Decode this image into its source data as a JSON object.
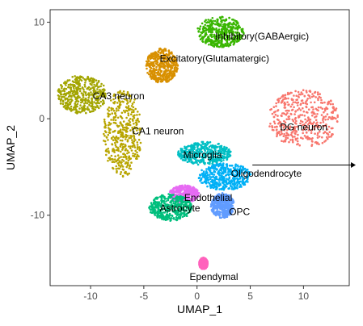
{
  "chart_data": {
    "type": "scatter",
    "xlabel": "UMAP_1",
    "ylabel": "UMAP_2",
    "xlim": [
      -13.8,
      14.3
    ],
    "ylim": [
      -17.3,
      11.3
    ],
    "xticks": [
      -10,
      -5,
      0,
      5,
      10
    ],
    "yticks": [
      10,
      0,
      -10
    ],
    "grid": false,
    "legend": "none",
    "clusters": [
      {
        "label": "Inhibitory(GABAergic)",
        "color": "#39B600",
        "center": [
          2.2,
          9.0
        ],
        "spread": [
          2.2,
          1.6
        ],
        "label_pos": [
          1.7,
          8.2
        ]
      },
      {
        "label": "Excitatory(Glutamatergic)",
        "color": "#D89000",
        "center": [
          -3.3,
          5.5
        ],
        "spread": [
          1.5,
          1.8
        ],
        "label_pos": [
          -3.5,
          5.9
        ]
      },
      {
        "label": "CA3 neuron",
        "color": "#A3A500",
        "center": [
          -10.8,
          2.5
        ],
        "spread": [
          2.3,
          2.0
        ],
        "label_pos": [
          -9.8,
          2.0
        ]
      },
      {
        "label": "CA1 neuron",
        "color": "#B8A500",
        "center": [
          -7.0,
          -1.5
        ],
        "spread": [
          1.8,
          4.5
        ],
        "label_pos": [
          -6.1,
          -1.6
        ]
      },
      {
        "label": "DG neuron",
        "color": "#F8766D",
        "center": [
          10.0,
          0.0
        ],
        "spread": [
          3.3,
          3.0
        ],
        "label_pos": [
          7.8,
          -1.2
        ]
      },
      {
        "label": "Microglia",
        "color": "#00BFC4",
        "center": [
          0.7,
          -3.6
        ],
        "spread": [
          2.5,
          1.2
        ],
        "label_pos": [
          -1.3,
          -4.1
        ]
      },
      {
        "label": "Oligodendrocyte",
        "color": "#00B0F6",
        "center": [
          2.6,
          -6.0
        ],
        "spread": [
          2.5,
          1.4
        ],
        "label_pos": [
          3.2,
          -6.0
        ]
      },
      {
        "label": "Endothelial",
        "color": "#E76BF3",
        "center": [
          -1.2,
          -7.8
        ],
        "spread": [
          1.4,
          0.9
        ],
        "label_pos": [
          -1.2,
          -8.5
        ]
      },
      {
        "label": "Astrocyte",
        "color": "#00BF7D",
        "center": [
          -2.5,
          -9.2
        ],
        "spread": [
          2.0,
          1.4
        ],
        "label_pos": [
          -3.5,
          -9.6
        ]
      },
      {
        "label": "OPC",
        "color": "#619CFF",
        "center": [
          2.4,
          -9.0
        ],
        "spread": [
          1.1,
          1.3
        ],
        "label_pos": [
          3.0,
          -10.0
        ]
      },
      {
        "label": "Ependymal",
        "color": "#FF62BC",
        "center": [
          0.6,
          -15.0
        ],
        "spread": [
          0.4,
          0.6
        ],
        "label_pos": [
          -0.7,
          -16.7
        ]
      }
    ],
    "arrow": {
      "from": [
        5.2,
        -4.8
      ],
      "to": [
        14.0,
        -4.8
      ]
    }
  }
}
